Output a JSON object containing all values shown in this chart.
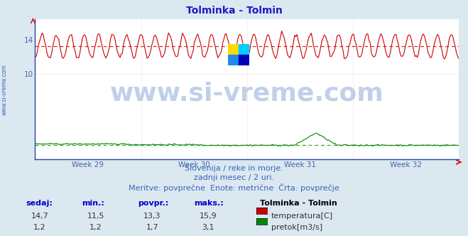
{
  "title": "Tolminka - Tolmin",
  "title_color": "#1a1acc",
  "bg_color": "#dce8f0",
  "plot_bg_color": "#ffffff",
  "grid_color_h": "#ffcccc",
  "grid_color_v": "#ffcccc",
  "avg_line_color_temp": "#cc3333",
  "avg_line_color_flow": "#33aa33",
  "x_weeks": [
    "Week 29",
    "Week 30",
    "Week 31",
    "Week 32"
  ],
  "y_ticks_temp": [
    10,
    14
  ],
  "temp_avg": 13.3,
  "temp_min": 11.5,
  "temp_max": 15.9,
  "temp_current": 14.7,
  "flow_avg": 1.7,
  "flow_min": 1.2,
  "flow_max": 3.1,
  "flow_current": 1.2,
  "temp_color": "#cc0000",
  "flow_color": "#008800",
  "watermark_text": "www.si-vreme.com",
  "watermark_color": "#3366bb",
  "watermark_alpha": 0.3,
  "watermark_fontsize": 26,
  "side_text": "www.si-vreme.com",
  "side_text_color": "#3366bb",
  "subtitle1": "Slovenija / reke in morje.",
  "subtitle2": "zadnji mesec / 2 uri.",
  "subtitle3": "Meritve: povprečne  Enote: metrične  Črta: povprečje",
  "subtitle_color": "#3366bb",
  "subtitle_fontsize": 8,
  "table_headers": [
    "sedaj:",
    "min.:",
    "povpr.:",
    "maks.:"
  ],
  "table_header_color": "#0000cc",
  "table_values_temp": [
    "14,7",
    "11,5",
    "13,3",
    "15,9"
  ],
  "table_values_flow": [
    "1,2",
    "1,2",
    "1,7",
    "3,1"
  ],
  "table_color": "#333333",
  "legend_title": "Tolminka - Tolmin",
  "legend_title_color": "#000000",
  "legend_temp": "temperatura[C]",
  "legend_flow": "pretok[m3/s]",
  "n_points": 360,
  "ylim_min": 0,
  "ylim_max": 16.5,
  "logo_colors": [
    "#ffdd00",
    "#00ccff",
    "#2288ee",
    "#0000bb"
  ]
}
